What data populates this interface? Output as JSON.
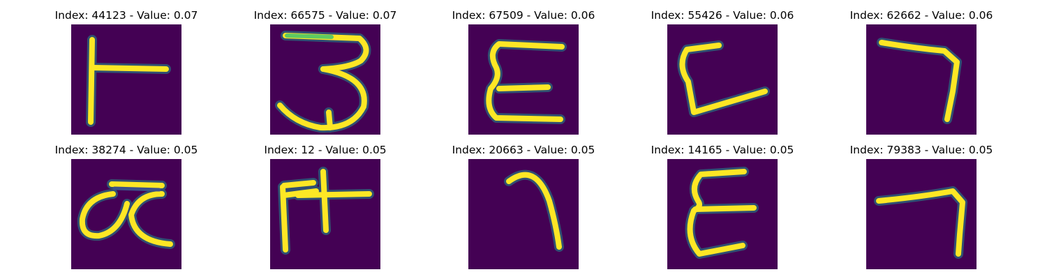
{
  "colors": {
    "background": "#440154",
    "glow": "#21918c",
    "stroke": "#fde725",
    "mid": "#5ec962"
  },
  "panels": [
    {
      "title": "Index: 44123 - Value: 0.07",
      "index": 44123,
      "value": 0.07
    },
    {
      "title": "Index: 66575 - Value: 0.07",
      "index": 66575,
      "value": 0.07
    },
    {
      "title": "Index: 67509 - Value: 0.06",
      "index": 67509,
      "value": 0.06
    },
    {
      "title": "Index: 55426 - Value: 0.06",
      "index": 55426,
      "value": 0.06
    },
    {
      "title": "Index: 62662 - Value: 0.06",
      "index": 62662,
      "value": 0.06
    },
    {
      "title": "Index: 38274 - Value: 0.05",
      "index": 38274,
      "value": 0.05
    },
    {
      "title": "Index: 12 - Value: 0.05",
      "index": 12,
      "value": 0.05
    },
    {
      "title": "Index: 20663 - Value: 0.05",
      "index": 20663,
      "value": 0.05
    },
    {
      "title": "Index: 14165 - Value: 0.05",
      "index": 14165,
      "value": 0.05
    },
    {
      "title": "Index: 79383 - Value: 0.05",
      "index": 79383,
      "value": 0.05
    }
  ]
}
